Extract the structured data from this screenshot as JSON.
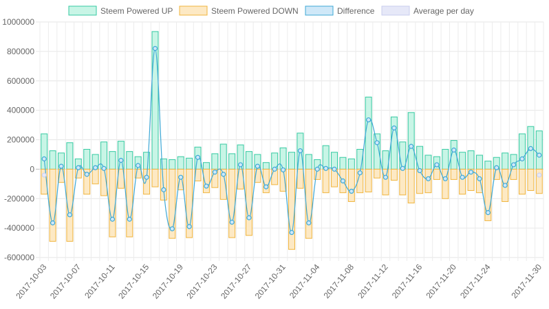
{
  "chart_data": {
    "type": "bar",
    "title": "",
    "xlabel": "",
    "ylabel": "",
    "ylim": [
      -600000,
      1000000
    ],
    "y_ticks": [
      "1000000",
      "800000",
      "600000",
      "400000",
      "200000",
      "0",
      "-200000",
      "-400000",
      "-600000"
    ],
    "x_tick_labels": [
      "2017-10-03",
      "2017-10-07",
      "2017-10-11",
      "2017-10-15",
      "2017-10-19",
      "2017-10-23",
      "2017-10-27",
      "2017-10-31",
      "2017-11-04",
      "2017-11-08",
      "2017-11-12",
      "2017-11-16",
      "2017-11-20",
      "2017-11-24",
      "2017-11-30"
    ],
    "legend_position": "top",
    "grid": true,
    "categories": [
      "2017-10-03",
      "2017-10-04",
      "2017-10-05",
      "2017-10-06",
      "2017-10-07",
      "2017-10-08",
      "2017-10-09",
      "2017-10-10",
      "2017-10-11",
      "2017-10-12",
      "2017-10-13",
      "2017-10-14",
      "2017-10-15",
      "2017-10-16",
      "2017-10-17",
      "2017-10-18",
      "2017-10-19",
      "2017-10-20",
      "2017-10-21",
      "2017-10-22",
      "2017-10-23",
      "2017-10-24",
      "2017-10-25",
      "2017-10-26",
      "2017-10-27",
      "2017-10-28",
      "2017-10-29",
      "2017-10-30",
      "2017-10-31",
      "2017-11-01",
      "2017-11-02",
      "2017-11-03",
      "2017-11-04",
      "2017-11-05",
      "2017-11-06",
      "2017-11-07",
      "2017-11-08",
      "2017-11-09",
      "2017-11-10",
      "2017-11-11",
      "2017-11-12",
      "2017-11-13",
      "2017-11-14",
      "2017-11-15",
      "2017-11-16",
      "2017-11-17",
      "2017-11-18",
      "2017-11-19",
      "2017-11-20",
      "2017-11-21",
      "2017-11-22",
      "2017-11-23",
      "2017-11-24",
      "2017-11-25",
      "2017-11-26",
      "2017-11-27",
      "2017-11-28",
      "2017-11-29",
      "2017-11-30"
    ],
    "series": [
      {
        "name": "Steem Powered UP",
        "type": "bar",
        "color_fill": "#c8f5e6",
        "color_line": "#35c9a1",
        "values": [
          240000,
          125000,
          110000,
          180000,
          70000,
          135000,
          100000,
          185000,
          120000,
          190000,
          120000,
          85000,
          115000,
          935000,
          70000,
          65000,
          85000,
          75000,
          150000,
          45000,
          105000,
          170000,
          105000,
          165000,
          120000,
          100000,
          45000,
          110000,
          145000,
          115000,
          245000,
          100000,
          65000,
          160000,
          115000,
          80000,
          70000,
          135000,
          490000,
          240000,
          125000,
          355000,
          185000,
          385000,
          155000,
          95000,
          85000,
          135000,
          195000,
          115000,
          125000,
          95000,
          55000,
          80000,
          110000,
          100000,
          240000,
          290000,
          260000
        ]
      },
      {
        "name": "Steem Powered DOWN",
        "type": "bar",
        "color_fill": "#fde9c4",
        "color_line": "#f0b43c",
        "values": [
          -170000,
          -490000,
          -90000,
          -490000,
          -60000,
          -170000,
          -100000,
          -180000,
          -460000,
          -130000,
          -460000,
          -60000,
          -170000,
          -120000,
          -210000,
          -470000,
          -140000,
          -465000,
          -80000,
          -160000,
          -125000,
          -205000,
          -465000,
          -135000,
          -450000,
          -90000,
          -160000,
          -105000,
          -150000,
          -545000,
          -130000,
          -470000,
          -70000,
          -160000,
          -120000,
          -160000,
          -220000,
          -160000,
          -155000,
          -60000,
          -175000,
          -75000,
          -175000,
          -230000,
          -165000,
          -160000,
          -70000,
          -200000,
          -70000,
          -170000,
          -145000,
          -160000,
          -350000,
          -70000,
          -220000,
          -70000,
          -170000,
          -145000,
          -165000
        ]
      },
      {
        "name": "Difference",
        "type": "line",
        "color_fill": "#cfe8f8",
        "color_line": "#3da8d6",
        "values": [
          70000,
          -365000,
          20000,
          -310000,
          10000,
          -35000,
          10000,
          5000,
          -340000,
          60000,
          -340000,
          25000,
          -55000,
          820000,
          -140000,
          -405000,
          -55000,
          -390000,
          80000,
          -115000,
          -20000,
          -35000,
          -360000,
          30000,
          -330000,
          20000,
          -120000,
          0,
          -5000,
          -430000,
          125000,
          -365000,
          0,
          5000,
          0,
          -80000,
          -150000,
          -25000,
          335000,
          180000,
          -55000,
          280000,
          5000,
          155000,
          -10000,
          -65000,
          30000,
          -65000,
          130000,
          -55000,
          -20000,
          -65000,
          -295000,
          10000,
          -110000,
          30000,
          70000,
          140000,
          95000
        ]
      },
      {
        "name": "Average per day",
        "type": "point",
        "color_fill": "#e6e8f8",
        "color_line": "#c8cdee",
        "values": [
          -40000,
          null,
          null,
          null,
          null,
          null,
          null,
          null,
          null,
          null,
          null,
          null,
          null,
          null,
          null,
          null,
          null,
          null,
          null,
          null,
          null,
          null,
          null,
          null,
          null,
          null,
          null,
          null,
          null,
          null,
          null,
          null,
          null,
          null,
          null,
          null,
          null,
          null,
          null,
          null,
          null,
          null,
          null,
          null,
          null,
          null,
          null,
          null,
          null,
          null,
          null,
          null,
          null,
          null,
          null,
          null,
          null,
          null,
          -40000
        ]
      }
    ]
  }
}
